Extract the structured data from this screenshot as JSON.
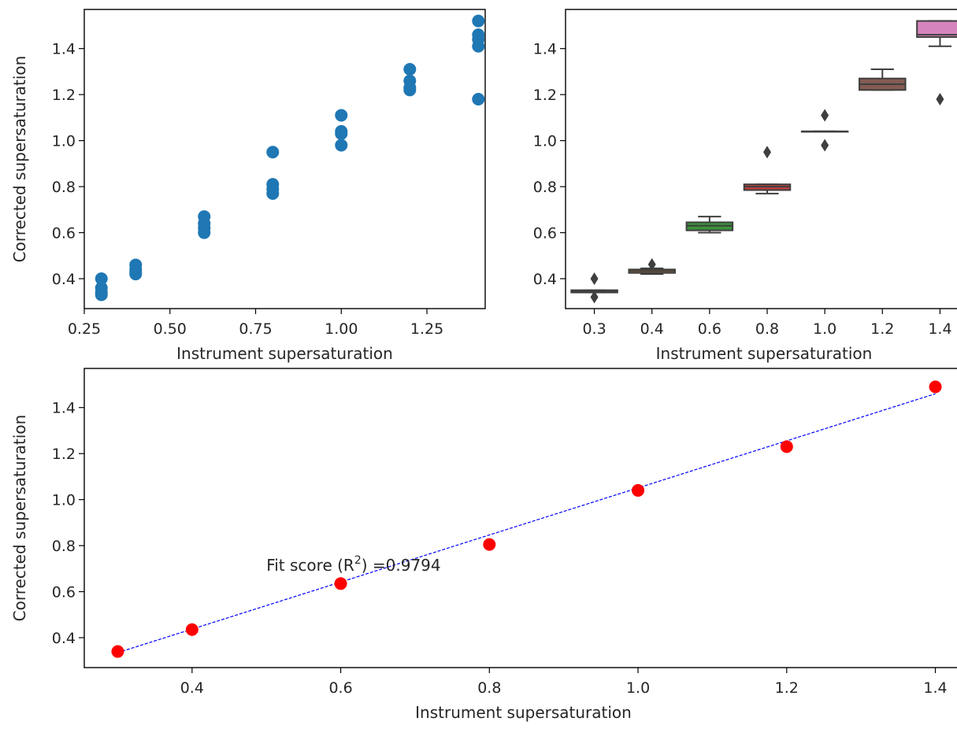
{
  "chart_data": [
    {
      "type": "scatter",
      "xlabel": "Instrument supersaturation",
      "ylabel": "Corrected supersaturation",
      "xlim": [
        0.25,
        1.42
      ],
      "ylim": [
        0.27,
        1.57
      ],
      "xticks": [
        0.25,
        0.5,
        0.75,
        1.0,
        1.25
      ],
      "xtick_labels": [
        "0.25",
        "0.50",
        "0.75",
        "1.00",
        "1.25"
      ],
      "yticks": [
        0.4,
        0.6,
        0.8,
        1.0,
        1.2,
        1.4
      ],
      "ytick_labels": [
        "0.4",
        "0.6",
        "0.8",
        "1.0",
        "1.2",
        "1.4"
      ],
      "marker_color": "#1f77b4",
      "points": [
        {
          "x": 0.3,
          "y": 0.4
        },
        {
          "x": 0.3,
          "y": 0.36
        },
        {
          "x": 0.3,
          "y": 0.34
        },
        {
          "x": 0.3,
          "y": 0.33
        },
        {
          "x": 0.4,
          "y": 0.46
        },
        {
          "x": 0.4,
          "y": 0.44
        },
        {
          "x": 0.4,
          "y": 0.43
        },
        {
          "x": 0.4,
          "y": 0.42
        },
        {
          "x": 0.6,
          "y": 0.67
        },
        {
          "x": 0.6,
          "y": 0.64
        },
        {
          "x": 0.6,
          "y": 0.62
        },
        {
          "x": 0.6,
          "y": 0.6
        },
        {
          "x": 0.8,
          "y": 0.95
        },
        {
          "x": 0.8,
          "y": 0.81
        },
        {
          "x": 0.8,
          "y": 0.79
        },
        {
          "x": 0.8,
          "y": 0.77
        },
        {
          "x": 1.0,
          "y": 1.11
        },
        {
          "x": 1.0,
          "y": 1.04
        },
        {
          "x": 1.0,
          "y": 1.03
        },
        {
          "x": 1.0,
          "y": 0.98
        },
        {
          "x": 1.2,
          "y": 1.31
        },
        {
          "x": 1.2,
          "y": 1.26
        },
        {
          "x": 1.2,
          "y": 1.23
        },
        {
          "x": 1.2,
          "y": 1.22
        },
        {
          "x": 1.4,
          "y": 1.52
        },
        {
          "x": 1.4,
          "y": 1.46
        },
        {
          "x": 1.4,
          "y": 1.44
        },
        {
          "x": 1.4,
          "y": 1.41
        },
        {
          "x": 1.4,
          "y": 1.18
        }
      ]
    },
    {
      "type": "box",
      "xlabel": "Instrument supersaturation",
      "ylim": [
        0.27,
        1.57
      ],
      "categories": [
        "0.3",
        "0.4",
        "0.6",
        "0.8",
        "1.0",
        "1.2",
        "1.4"
      ],
      "yticks": [
        0.4,
        0.6,
        0.8,
        1.0,
        1.2,
        1.4
      ],
      "ytick_labels": [
        "0.4",
        "0.6",
        "0.8",
        "1.0",
        "1.2",
        "1.4"
      ],
      "boxes": [
        {
          "category": "0.3",
          "color": "#3274a1",
          "q1": 0.34,
          "median": 0.345,
          "q3": 0.35,
          "whisker_low": 0.34,
          "whisker_high": 0.35,
          "outliers": [
            0.4,
            0.32
          ]
        },
        {
          "category": "0.4",
          "color": "#e1812c",
          "q1": 0.425,
          "median": 0.433,
          "q3": 0.44,
          "whisker_low": 0.42,
          "whisker_high": 0.445,
          "outliers": [
            0.462
          ]
        },
        {
          "category": "0.6",
          "color": "#3a923a",
          "q1": 0.61,
          "median": 0.63,
          "q3": 0.645,
          "whisker_low": 0.6,
          "whisker_high": 0.67,
          "outliers": []
        },
        {
          "category": "0.8",
          "color": "#c03d3e",
          "q1": 0.785,
          "median": 0.8,
          "q3": 0.81,
          "whisker_low": 0.77,
          "whisker_high": 0.81,
          "outliers": [
            0.95
          ]
        },
        {
          "category": "1.0",
          "color": "#9372b2",
          "q1": 1.04,
          "median": 1.04,
          "q3": 1.04,
          "whisker_low": 1.04,
          "whisker_high": 1.04,
          "outliers": [
            1.11,
            0.98
          ]
        },
        {
          "category": "1.2",
          "color": "#845b53",
          "q1": 1.22,
          "median": 1.245,
          "q3": 1.27,
          "whisker_low": 1.22,
          "whisker_high": 1.31,
          "outliers": []
        },
        {
          "category": "1.4",
          "color": "#d684bd",
          "q1": 1.45,
          "median": 1.46,
          "q3": 1.52,
          "whisker_low": 1.41,
          "whisker_high": 1.52,
          "outliers": [
            1.18
          ]
        }
      ]
    },
    {
      "type": "scatter",
      "xlabel": "Instrument supersaturation",
      "ylabel": "Corrected supersaturation",
      "xlim": [
        0.255,
        1.445
      ],
      "ylim": [
        0.27,
        1.57
      ],
      "xticks": [
        0.4,
        0.6,
        0.8,
        1.0,
        1.2,
        1.4
      ],
      "xtick_labels": [
        "0.4",
        "0.6",
        "0.8",
        "1.0",
        "1.2",
        "1.4"
      ],
      "yticks": [
        0.4,
        0.6,
        0.8,
        1.0,
        1.2,
        1.4
      ],
      "ytick_labels": [
        "0.4",
        "0.6",
        "0.8",
        "1.0",
        "1.2",
        "1.4"
      ],
      "marker_color": "#ff0000",
      "x": [
        0.3,
        0.4,
        0.6,
        0.8,
        1.0,
        1.2,
        1.4
      ],
      "y": [
        0.34,
        0.435,
        0.635,
        0.805,
        1.04,
        1.23,
        1.49
      ],
      "fit_line": {
        "color": "#0000ff",
        "x": [
          0.3,
          1.4
        ],
        "y": [
          0.335,
          1.46
        ]
      },
      "annotation": {
        "prefix": "Fit score (R",
        "superscript": "2",
        "suffix": ") =0.9794",
        "x": 0.5,
        "y": 0.69
      }
    }
  ]
}
